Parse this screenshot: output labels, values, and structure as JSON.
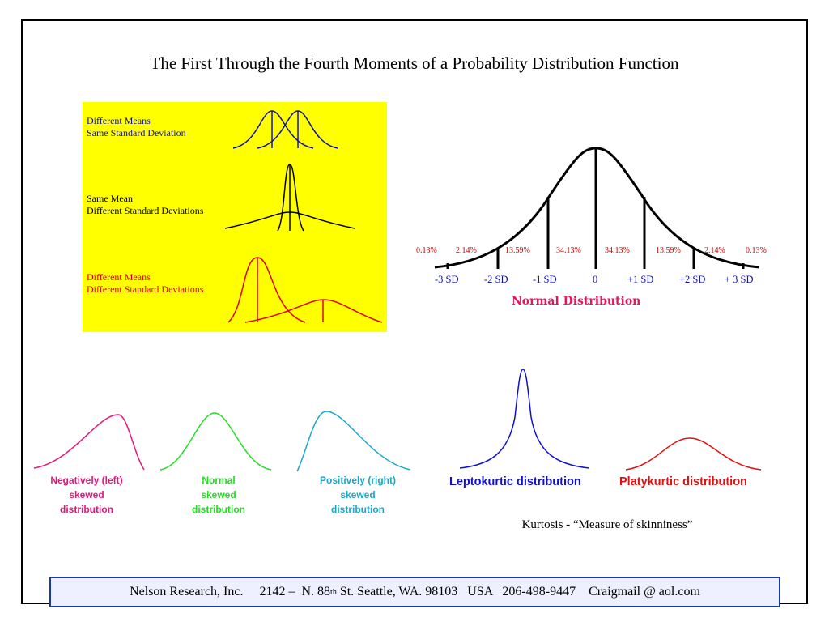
{
  "title": "The First Through the Fourth Moments of a Probability Distribution Function",
  "moments_panel": {
    "row1": {
      "line1": "Different Means",
      "line2": "Same Standard Deviation"
    },
    "row2": {
      "line1": "Same Mean",
      "line2": "Different Standard Deviations"
    },
    "row3": {
      "line1": "Different Means",
      "line2": "Different Standard Deviations"
    },
    "colors": {
      "background": "#ffff00",
      "row1": "#1010b0",
      "row2": "#000000",
      "row3": "#e00000"
    }
  },
  "normal_distribution": {
    "title": "Normal Distribution",
    "percentages": [
      "0.13%",
      "2.14%",
      "13.59%",
      "34.13%",
      "34.13%",
      "13.59%",
      "2.14%",
      "0.13%"
    ],
    "sd_labels": [
      "-3 SD",
      "-2 SD",
      "-1 SD",
      "0",
      "+1 SD",
      "+2 SD",
      "+ 3 SD"
    ]
  },
  "skewness": {
    "negative": {
      "line1": "Negatively (left)",
      "line2": "skewed",
      "line3": "distribution",
      "color": "#e8157a"
    },
    "normal": {
      "line1": "Normal",
      "line2": "skewed",
      "line3": "distribution",
      "color": "#22dd22"
    },
    "positive": {
      "line1": "Positively (right)",
      "line2": "skewed",
      "line3": "distribution",
      "color": "#1aa8c8"
    }
  },
  "kurtosis": {
    "leptokurtic": {
      "label": "Leptokurtic distribution",
      "color": "#1010d0"
    },
    "platykurtic": {
      "label": "Platykurtic distribution",
      "color": "#e01010"
    },
    "caption": "Kurtosis - “Measure of skinniness”"
  },
  "footer": {
    "part1": "Nelson Research, Inc.     2142 –  N. 88",
    "superscript": "th",
    "part2": " St. Seattle, WA. 98103   USA   206-498-9447    Craigmail @ aol.com"
  }
}
